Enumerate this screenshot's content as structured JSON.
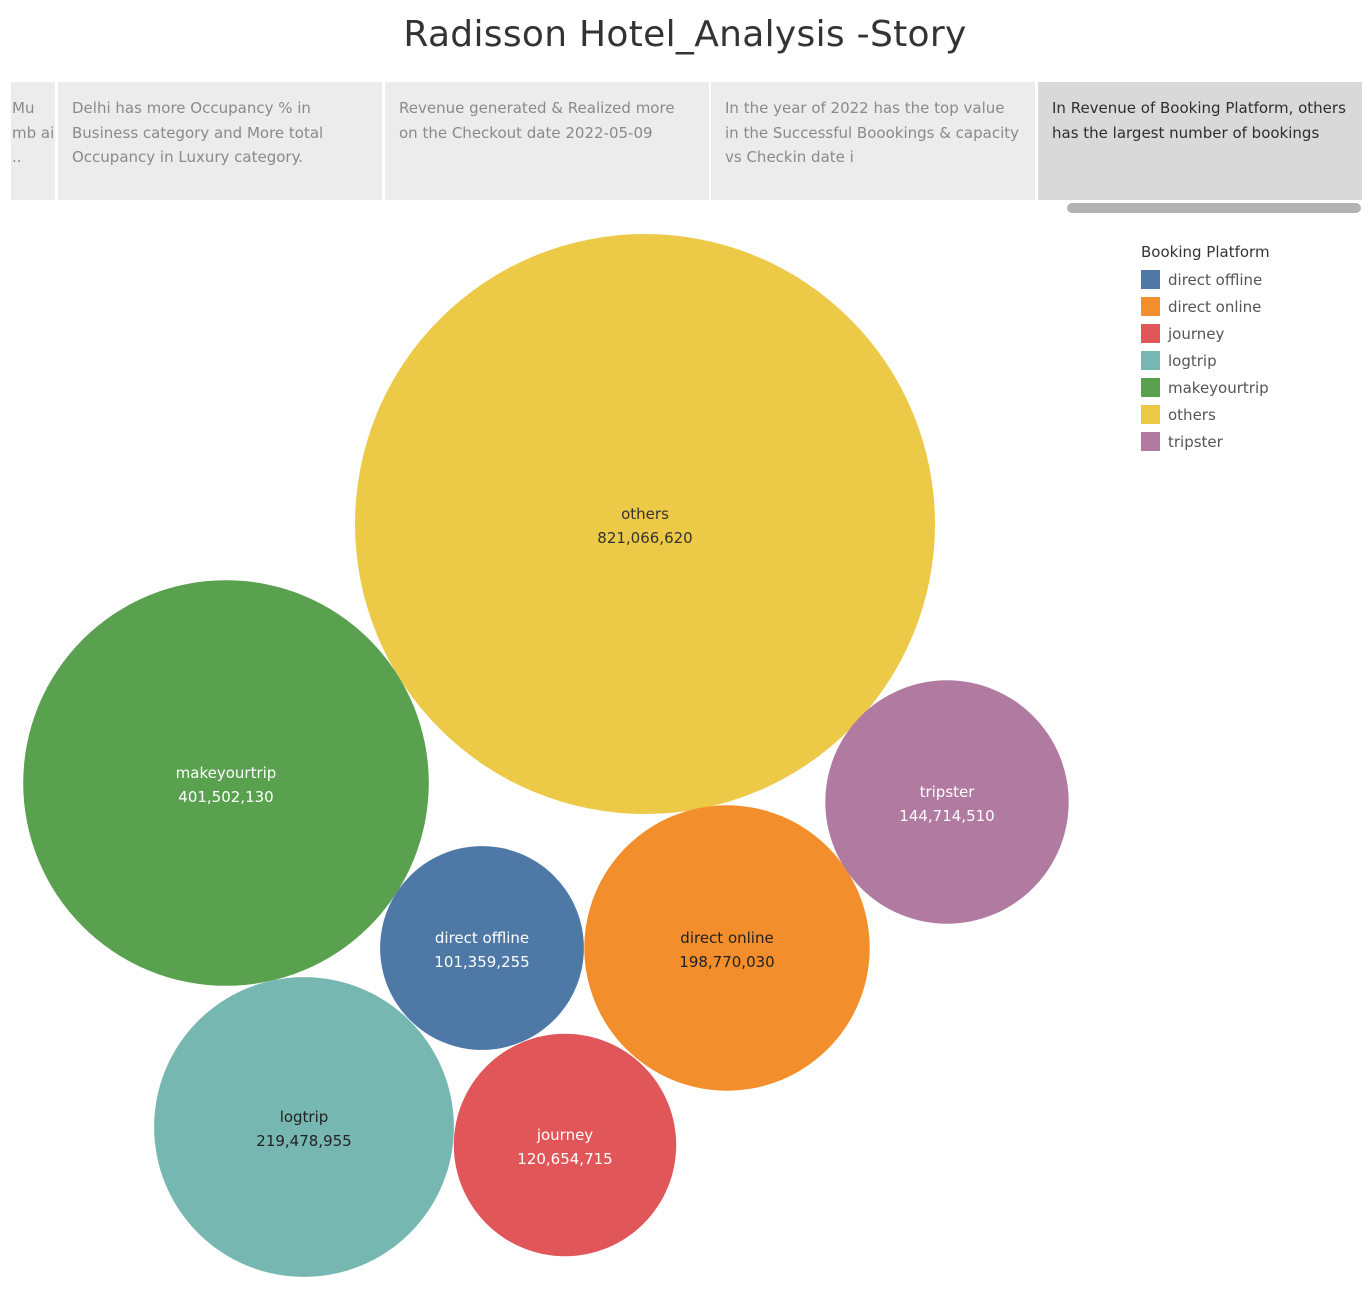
{
  "page": {
    "title": "Radisson Hotel_Analysis -Story"
  },
  "story_points": [
    {
      "text": "Mu mb ai ..",
      "active": false
    },
    {
      "text": "Delhi has more Occupancy % in Business category and  More total Occupancy in Luxury category.",
      "active": false
    },
    {
      "text": "Revenue generated & Realized  more on  the Checkout date 2022-05-09",
      "active": false
    },
    {
      "text": "In the year of 2022 has the top value in the Successful Boookings & capacity vs Checkin date i",
      "active": false
    },
    {
      "text": "In Revenue of Booking Platform, others has the largest number of bookings",
      "active": true
    }
  ],
  "legend": {
    "title": "Booking Platform",
    "items": [
      {
        "label": "direct offline",
        "color": "#4e79a7"
      },
      {
        "label": "direct online",
        "color": "#f28e2b"
      },
      {
        "label": "journey",
        "color": "#e15759"
      },
      {
        "label": "logtrip",
        "color": "#76b7b2"
      },
      {
        "label": "makeyourtrip",
        "color": "#59a14f"
      },
      {
        "label": "others",
        "color": "#edc948"
      },
      {
        "label": "tripster",
        "color": "#b07aa1"
      }
    ]
  },
  "chart_data": {
    "type": "bubble",
    "title": "",
    "series": [
      {
        "name": "others",
        "value": 821066620,
        "value_label": "821,066,620",
        "color": "#edc948",
        "text_color": "#333333"
      },
      {
        "name": "makeyourtrip",
        "value": 401502130,
        "value_label": "401,502,130",
        "color": "#59a14f",
        "text_color": "#ffffff"
      },
      {
        "name": "logtrip",
        "value": 219478955,
        "value_label": "219,478,955",
        "color": "#76b7b2",
        "text_color": "#222222"
      },
      {
        "name": "direct online",
        "value": 198770030,
        "value_label": "198,770,030",
        "color": "#f28e2b",
        "text_color": "#222222"
      },
      {
        "name": "tripster",
        "value": 144714510,
        "value_label": "144,714,510",
        "color": "#b07aa1",
        "text_color": "#ffffff"
      },
      {
        "name": "journey",
        "value": 120654715,
        "value_label": "120,654,715",
        "color": "#e15759",
        "text_color": "#ffffff"
      },
      {
        "name": "direct offline",
        "value": 101359255,
        "value_label": "101,359,255",
        "color": "#4e79a7",
        "text_color": "#ffffff"
      }
    ]
  }
}
